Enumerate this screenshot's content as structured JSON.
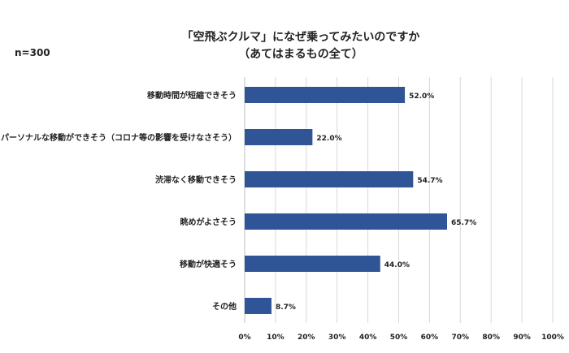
{
  "sample_size": "n=300",
  "title_line1": "「空飛ぶクルマ」になぜ乗ってみたいのですか",
  "title_line2": "（あてはまるもの全て）",
  "colors": {
    "bar": "#2f5597",
    "gridline": "#d9d9d9",
    "axis": "#bfbfbf"
  },
  "chart_data": {
    "type": "bar",
    "orientation": "horizontal",
    "categories": [
      "移動時間が短縮できそう",
      "パーソナルな移動ができそう（コロナ等の影響を受けなさそう）",
      "渋滞なく移動できそう",
      "眺めがよさそう",
      "移動が快適そう",
      "その他"
    ],
    "values": [
      52.0,
      22.0,
      54.7,
      65.7,
      44.0,
      8.7
    ],
    "value_labels": [
      "52.0%",
      "22.0%",
      "54.7%",
      "65.7%",
      "44.0%",
      "8.7%"
    ],
    "xlim": [
      0,
      100
    ],
    "x_ticks": [
      "0%",
      "10%",
      "20%",
      "30%",
      "40%",
      "50%",
      "60%",
      "70%",
      "80%",
      "90%",
      "100%"
    ],
    "grid": true
  }
}
